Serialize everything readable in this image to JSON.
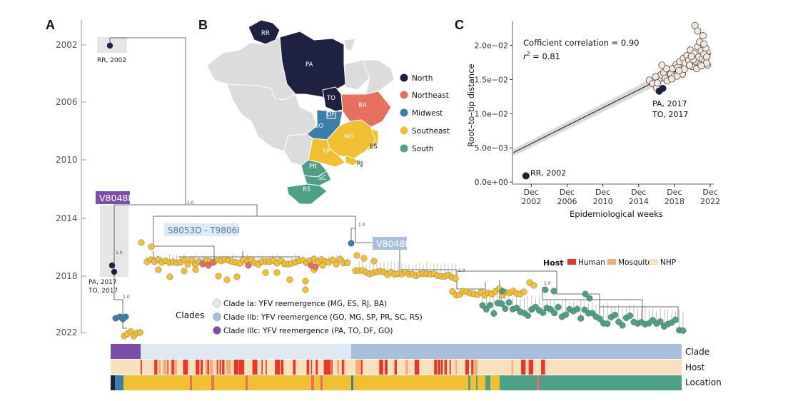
{
  "colors": {
    "north": "#1f2140",
    "northeast": "#e5705f",
    "midwest": "#3c7ea8",
    "southeast": "#f1c032",
    "south": "#4e9f87",
    "human": "#e3382a",
    "mosquito": "#f0ad78",
    "nhp": "#f9e0be",
    "clade_ia": "#dde9f3",
    "clade_iib": "#a8bfdc",
    "clade_iiic": "#7d4ea8",
    "grey_state": "#dcdcdc"
  },
  "panel_a": {
    "letter": "A",
    "years": [
      "2002",
      "2006",
      "2010",
      "2014",
      "2018",
      "2022"
    ],
    "label_rr": "RR, 2002",
    "label_pa": "PA, 2017",
    "label_to": "TO, 2017",
    "mutation_purple": "V8048I",
    "mutation_s8053d": "S8053D - T9806I",
    "mutation_v8048i_blue": "V8048I",
    "support_values": [
      "1.0",
      "1.0",
      "1.0",
      "1.0",
      "1.0",
      "1.0"
    ]
  },
  "panel_b": {
    "letter": "B",
    "states": [
      "RR",
      "PA",
      "TO",
      "BA",
      "DF",
      "GO",
      "MG",
      "ES",
      "SP",
      "RJ",
      "PR",
      "SC",
      "RS"
    ],
    "regions": [
      {
        "name": "North",
        "color": "#1f2140"
      },
      {
        "name": "Northeast",
        "color": "#e5705f"
      },
      {
        "name": "Midwest",
        "color": "#3c7ea8"
      },
      {
        "name": "Southeast",
        "color": "#f1c032"
      },
      {
        "name": "South",
        "color": "#4e9f87"
      }
    ]
  },
  "panel_c": {
    "letter": "C",
    "annotation_corr": "Cofficient correlation = 0.90",
    "annotation_r2_prefix": "r",
    "annotation_r2_sup": "2",
    "annotation_r2_value": " = 0.81",
    "pa_label": "PA, 2017",
    "to_label": "TO, 2017",
    "rr_label": "RR, 2002",
    "chart_data": {
      "type": "scatter",
      "title": "",
      "xlabel": "Epidemiological weeks",
      "ylabel": "Root–to–tip distance",
      "x_ticks": [
        "Dec 2002",
        "Dec 2006",
        "Dec 2010",
        "Dec 2014",
        "Dec 2018",
        "Dec 2022"
      ],
      "x_tick_years": [
        2002.9,
        2006.9,
        2010.9,
        2014.9,
        2018.9,
        2022.9
      ],
      "y_ticks": [
        "0.0e+00",
        "5.0e−03",
        "1.0e−02",
        "1.5e−02",
        "2.0e−02"
      ],
      "y_tick_values": [
        0,
        0.005,
        0.01,
        0.015,
        0.02
      ],
      "xlim": [
        2000.8,
        2023.3
      ],
      "ylim": [
        -0.0003,
        0.0235
      ],
      "regression": {
        "x": [
          2000.9,
          2023.0
        ],
        "y": [
          0.0043,
          0.0188
        ]
      },
      "highlight_points": [
        {
          "label": "RR, 2002",
          "x": 2002.3,
          "y": 0.0009
        },
        {
          "label": "PA, 2017",
          "x": 2017.2,
          "y": 0.0133
        },
        {
          "label": "TO, 2017",
          "x": 2017.6,
          "y": 0.0137
        }
      ],
      "points": [
        [
          2016.1,
          0.0149
        ],
        [
          2016.5,
          0.0144
        ],
        [
          2016.9,
          0.0138
        ],
        [
          2017.2,
          0.0151
        ],
        [
          2017.4,
          0.0157
        ],
        [
          2017.7,
          0.016
        ],
        [
          2017.9,
          0.0152
        ],
        [
          2018.1,
          0.0148
        ],
        [
          2018.3,
          0.0163
        ],
        [
          2018.5,
          0.0158
        ],
        [
          2018.7,
          0.0166
        ],
        [
          2018.9,
          0.0155
        ],
        [
          2019.1,
          0.0172
        ],
        [
          2019.3,
          0.0168
        ],
        [
          2019.5,
          0.0176
        ],
        [
          2019.7,
          0.0162
        ],
        [
          2019.9,
          0.0181
        ],
        [
          2020.1,
          0.0174
        ],
        [
          2020.3,
          0.0185
        ],
        [
          2020.5,
          0.0178
        ],
        [
          2020.7,
          0.0193
        ],
        [
          2020.9,
          0.0169
        ],
        [
          2021.1,
          0.0188
        ],
        [
          2021.3,
          0.0176
        ],
        [
          2021.5,
          0.0198
        ],
        [
          2021.6,
          0.0183
        ],
        [
          2021.7,
          0.0205
        ],
        [
          2021.8,
          0.0172
        ],
        [
          2021.9,
          0.0192
        ],
        [
          2022.0,
          0.018
        ],
        [
          2022.1,
          0.0214
        ],
        [
          2022.2,
          0.0187
        ],
        [
          2022.3,
          0.0176
        ],
        [
          2022.4,
          0.0196
        ],
        [
          2022.5,
          0.0183
        ],
        [
          2022.6,
          0.0171
        ],
        [
          2021.2,
          0.0229
        ],
        [
          2021.5,
          0.0221
        ],
        [
          2019.8,
          0.0158
        ],
        [
          2019.2,
          0.0155
        ],
        [
          2018.0,
          0.0166
        ],
        [
          2017.5,
          0.0171
        ],
        [
          2016.8,
          0.0154
        ],
        [
          2020.0,
          0.0165
        ],
        [
          2020.6,
          0.0171
        ],
        [
          2021.0,
          0.0179
        ],
        [
          2021.4,
          0.0166
        ],
        [
          2022.2,
          0.0202
        ],
        [
          2022.5,
          0.0174
        ],
        [
          2018.6,
          0.0151
        ],
        [
          2019.4,
          0.0163
        ],
        [
          2020.8,
          0.0184
        ],
        [
          2017.0,
          0.0145
        ],
        [
          2021.9,
          0.017
        ]
      ]
    }
  },
  "clade_legend": {
    "title": "Clades",
    "items": [
      {
        "label": "Clade Ia: YFV reemergence  (MG, ES, RJ, BA)",
        "color": "#dde9f3"
      },
      {
        "label": "Clade IIb: YFV reemergence (GO, MG, SP, PR, SC, RS)",
        "color": "#a8bfdc"
      },
      {
        "label": "Clade IIIc: YFV reemergence (PA, TO, DF, GO)",
        "color": "#7d4ea8"
      }
    ]
  },
  "host_legend": {
    "title": "Host",
    "items": [
      {
        "label": "Human",
        "color": "#e3382a"
      },
      {
        "label": "Mosquito",
        "color": "#f0ad78"
      },
      {
        "label": "NHP",
        "color": "#f9e0be"
      }
    ]
  },
  "annotation_bars": {
    "clade_label": "Clade",
    "host_label": "Host",
    "location_label": "Location"
  }
}
